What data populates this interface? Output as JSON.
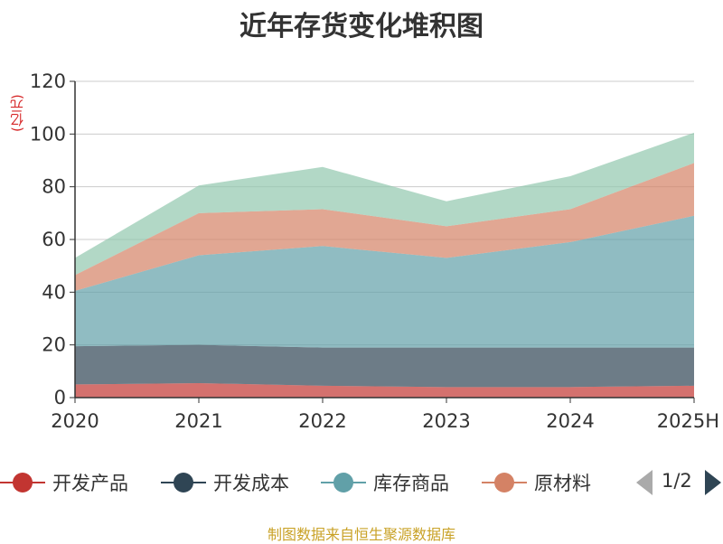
{
  "chart_data": {
    "type": "area",
    "stacked": true,
    "title": "近年存货变化堆积图",
    "unit": "(亿元)",
    "categories": [
      "2020",
      "2021",
      "2022",
      "2023",
      "2024",
      "2025H"
    ],
    "ylim": [
      0,
      120
    ],
    "yticks": [
      0,
      20,
      40,
      60,
      80,
      100,
      120
    ],
    "grid": true,
    "series": [
      {
        "name": "开发产品",
        "color": "#c23531",
        "values": [
          5,
          5.5,
          4.5,
          4,
          4,
          4.5
        ]
      },
      {
        "name": "开发成本",
        "color": "#2f4554",
        "values": [
          14.5,
          14.5,
          14.5,
          15,
          15,
          14.5
        ]
      },
      {
        "name": "库存商品",
        "color": "#61a0a8",
        "values": [
          21,
          34,
          38.5,
          34,
          40,
          50
        ]
      },
      {
        "name": "原材料",
        "color": "#d48265",
        "values": [
          6,
          16,
          14,
          12,
          12.5,
          20
        ]
      },
      {
        "name": "",
        "color": "#91c7ae",
        "values": [
          6.5,
          10.5,
          16,
          9.5,
          12.5,
          11.5
        ]
      }
    ],
    "legend_position": "bottom"
  },
  "legend": {
    "items": [
      {
        "label": "开发产品",
        "color": "#c23531"
      },
      {
        "label": "开发成本",
        "color": "#2f4554"
      },
      {
        "label": "库存商品",
        "color": "#61a0a8"
      },
      {
        "label": "原材料",
        "color": "#d48265"
      }
    ],
    "page_text": "1/2"
  },
  "source_note": "制图数据来自恒生聚源数据库"
}
